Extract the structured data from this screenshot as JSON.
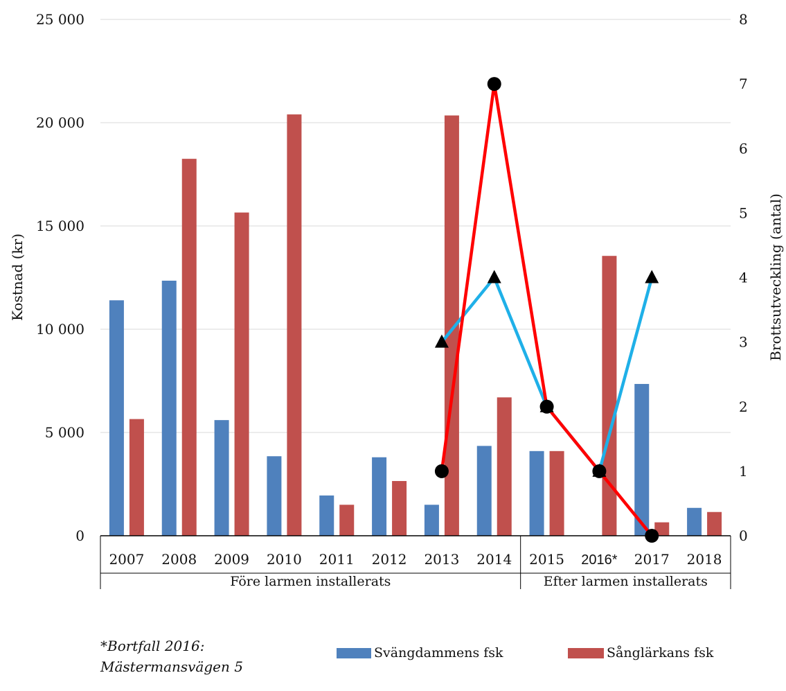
{
  "chart_data": {
    "type": "bar",
    "categories": [
      "2007",
      "2008",
      "2009",
      "2010",
      "2011",
      "2012",
      "2013",
      "2014",
      "2015",
      "2016*",
      "2017",
      "2018"
    ],
    "series": [
      {
        "name": "Svängdammens fsk",
        "color": "#4f81bd",
        "values": [
          11400,
          12350,
          5600,
          3850,
          1950,
          3800,
          1500,
          4350,
          4100,
          null,
          7350,
          1350
        ]
      },
      {
        "name": "Sånglärkans fsk",
        "color": "#c0504d",
        "values": [
          5650,
          18250,
          15650,
          20400,
          1500,
          2650,
          20350,
          6700,
          4100,
          13550,
          650,
          1150
        ]
      }
    ],
    "lines": [
      {
        "axis": "right",
        "color": "#1fb0e8",
        "marker": "triangle",
        "values": [
          null,
          null,
          null,
          null,
          null,
          null,
          3,
          4,
          2,
          1,
          4,
          null
        ]
      },
      {
        "axis": "right",
        "color": "#ff0000",
        "marker": "circle",
        "values": [
          null,
          null,
          null,
          null,
          null,
          null,
          1,
          7,
          2,
          1,
          0,
          null
        ]
      }
    ],
    "ylabel": "Kostnad (kr)",
    "y2label": "Brottsutveckling (antal)",
    "ylim": [
      0,
      25000
    ],
    "y2lim": [
      0,
      8
    ],
    "yticks": [
      "0",
      "5 000",
      "10 000",
      "15 000",
      "20 000",
      "25 000"
    ],
    "y2ticks": [
      "0",
      "1",
      "2",
      "3",
      "4",
      "5",
      "6",
      "7",
      "8"
    ],
    "groups": [
      {
        "label": "Före larmen installerats",
        "from": 0,
        "to": 7
      },
      {
        "label": "Efter larmen installerats",
        "from": 8,
        "to": 11
      }
    ],
    "footnote": [
      "*Bortfall 2016:",
      "Mästermansvägen 5"
    ],
    "grid": true,
    "legend_position": "bottom"
  }
}
